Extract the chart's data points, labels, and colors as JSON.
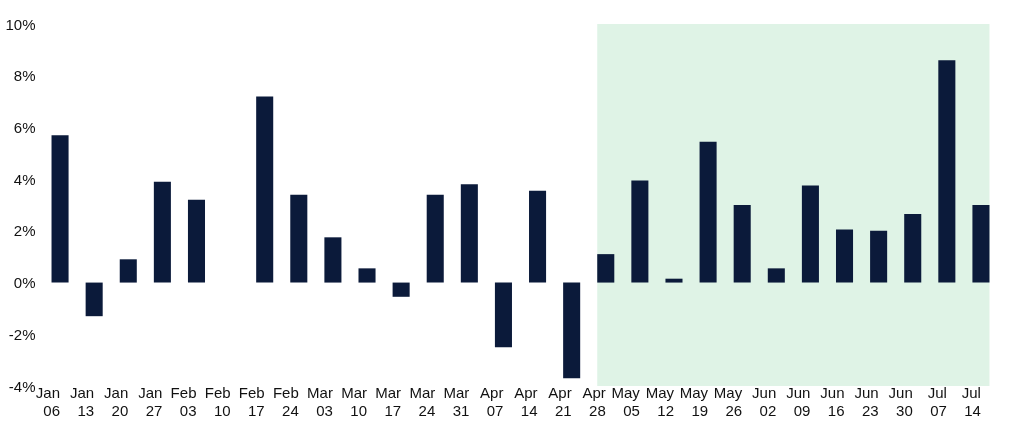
{
  "chart_data": {
    "type": "bar",
    "categories": [
      "Jan 06",
      "Jan 13",
      "Jan 20",
      "Jan 27",
      "Feb 03",
      "Feb 10",
      "Feb 17",
      "Feb 24",
      "Mar 03",
      "Mar 10",
      "Mar 17",
      "Mar 24",
      "Mar 31",
      "Apr 07",
      "Apr 14",
      "Apr 21",
      "Apr 28",
      "May 05",
      "May 12",
      "May 19",
      "May 26",
      "Jun 02",
      "Jun 09",
      "Jun 16",
      "Jun 23",
      "Jun 30",
      "Jul 07",
      "Jul 14"
    ],
    "values": [
      5.7,
      -1.3,
      0.9,
      3.9,
      3.2,
      0,
      7.2,
      3.4,
      1.75,
      0.55,
      -0.55,
      3.4,
      3.8,
      -2.5,
      3.55,
      -3.7,
      1.1,
      3.95,
      0.15,
      5.45,
      3.0,
      0.55,
      3.75,
      2.05,
      2.0,
      2.65,
      8.6,
      3.0
    ],
    "color": "#0b1a3a",
    "ylim": [
      -4,
      10
    ],
    "yticks": [
      {
        "value": -4,
        "label": "-4%"
      },
      {
        "value": -2,
        "label": "-2%"
      },
      {
        "value": 0,
        "label": "0%"
      },
      {
        "value": 2,
        "label": "2%"
      },
      {
        "value": 4,
        "label": "4%"
      },
      {
        "value": 6,
        "label": "6%"
      },
      {
        "value": 8,
        "label": "8%"
      },
      {
        "value": 10,
        "label": "10%"
      }
    ],
    "bands": [
      {
        "axis": "x",
        "from": "Apr 28",
        "to": "Jul 14",
        "color": "#dff3e6"
      }
    ],
    "grid": false
  }
}
